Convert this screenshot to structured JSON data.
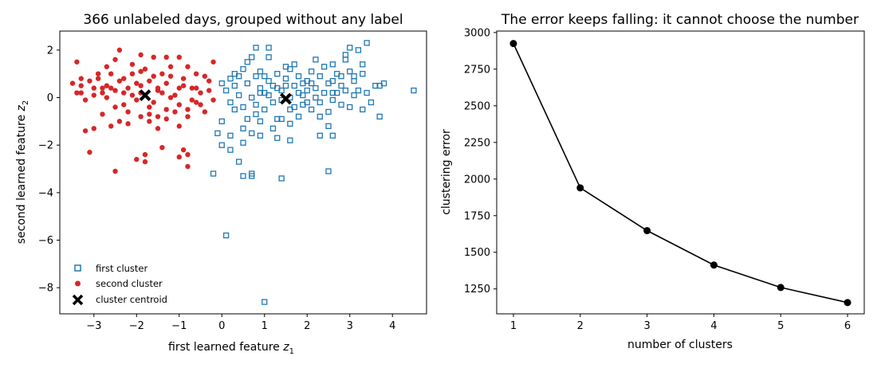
{
  "chart_data": [
    {
      "type": "scatter",
      "title": "366 unlabeled days, grouped without any label",
      "xlabel": "first learned feature z₁",
      "ylabel": "second learned feature z₂",
      "xlim": [
        -3.8,
        4.8
      ],
      "ylim": [
        -9.1,
        2.8
      ],
      "xticks": [
        "−3",
        "−2",
        "−1",
        "0",
        "1",
        "2",
        "3",
        "4"
      ],
      "yticks": [
        "2",
        "0",
        "−2",
        "−4",
        "−6",
        "−8"
      ],
      "grid": false,
      "legend_position": "lower-left",
      "series": [
        {
          "name": "first cluster",
          "marker": "open-square",
          "color": "#1f77b4",
          "points": [
            [
              0.2,
              0.8
            ],
            [
              0.3,
              1.0
            ],
            [
              0.5,
              1.2
            ],
            [
              0.6,
              0.6
            ],
            [
              0.8,
              0.9
            ],
            [
              0.9,
              0.4
            ],
            [
              1.0,
              0.2
            ],
            [
              1.1,
              0.7
            ],
            [
              1.2,
              0.5
            ],
            [
              1.3,
              1.0
            ],
            [
              1.4,
              0.3
            ],
            [
              1.5,
              0.8
            ],
            [
              1.6,
              1.2
            ],
            [
              1.7,
              0.5
            ],
            [
              1.8,
              0.9
            ],
            [
              1.9,
              0.1
            ],
            [
              2.0,
              0.7
            ],
            [
              2.1,
              1.1
            ],
            [
              2.2,
              0.4
            ],
            [
              2.3,
              0.9
            ],
            [
              2.4,
              1.3
            ],
            [
              2.5,
              0.6
            ],
            [
              2.6,
              0.2
            ],
            [
              2.7,
              1.0
            ],
            [
              2.8,
              0.5
            ],
            [
              2.9,
              1.6
            ],
            [
              3.0,
              1.1
            ],
            [
              3.1,
              0.7
            ],
            [
              3.2,
              0.3
            ],
            [
              3.3,
              1.4
            ],
            [
              0.1,
              0.3
            ],
            [
              0.2,
              -0.2
            ],
            [
              0.4,
              0.1
            ],
            [
              0.5,
              -0.4
            ],
            [
              0.7,
              0.0
            ],
            [
              0.8,
              -0.3
            ],
            [
              0.9,
              0.2
            ],
            [
              1.0,
              -0.5
            ],
            [
              1.1,
              0.1
            ],
            [
              1.2,
              -0.2
            ],
            [
              1.3,
              0.4
            ],
            [
              1.4,
              -0.1
            ],
            [
              1.6,
              0.0
            ],
            [
              1.7,
              -0.4
            ],
            [
              1.8,
              0.2
            ],
            [
              1.9,
              -0.3
            ],
            [
              2.0,
              0.3
            ],
            [
              2.1,
              -0.5
            ],
            [
              2.2,
              0.0
            ],
            [
              2.3,
              -0.2
            ],
            [
              2.5,
              -0.6
            ],
            [
              2.6,
              -0.1
            ],
            [
              2.7,
              0.2
            ],
            [
              2.8,
              -0.3
            ],
            [
              3.0,
              -0.4
            ],
            [
              3.1,
              0.1
            ],
            [
              3.3,
              -0.5
            ],
            [
              3.5,
              -0.2
            ],
            [
              3.6,
              0.5
            ],
            [
              0.0,
              0.6
            ],
            [
              0.3,
              0.5
            ],
            [
              0.6,
              1.5
            ],
            [
              0.7,
              1.7
            ],
            [
              0.8,
              2.1
            ],
            [
              1.1,
              2.1
            ],
            [
              1.1,
              1.7
            ],
            [
              1.5,
              1.3
            ],
            [
              1.7,
              1.4
            ],
            [
              2.2,
              1.6
            ],
            [
              2.6,
              1.4
            ],
            [
              2.9,
              1.8
            ],
            [
              3.0,
              2.1
            ],
            [
              3.2,
              2.0
            ],
            [
              3.4,
              2.3
            ],
            [
              3.7,
              0.5
            ],
            [
              3.8,
              0.6
            ],
            [
              0.3,
              -0.5
            ],
            [
              0.6,
              -0.9
            ],
            [
              0.9,
              -1.0
            ],
            [
              1.2,
              -1.3
            ],
            [
              1.4,
              -0.9
            ],
            [
              1.6,
              -1.1
            ],
            [
              1.8,
              -0.8
            ],
            [
              2.3,
              -0.8
            ],
            [
              2.5,
              -1.2
            ],
            [
              0.5,
              -1.3
            ],
            [
              0.7,
              -1.5
            ],
            [
              0.9,
              -1.6
            ],
            [
              1.3,
              -1.7
            ],
            [
              1.6,
              -1.8
            ],
            [
              0.2,
              -1.6
            ],
            [
              0.0,
              -1.0
            ],
            [
              -0.1,
              -1.5
            ],
            [
              0.0,
              -2.0
            ],
            [
              0.2,
              -2.2
            ],
            [
              0.5,
              -1.9
            ],
            [
              0.4,
              -2.7
            ],
            [
              2.3,
              -1.6
            ],
            [
              2.6,
              -1.6
            ],
            [
              0.5,
              -3.3
            ],
            [
              0.7,
              -3.3
            ],
            [
              0.7,
              -3.2
            ],
            [
              1.4,
              -3.4
            ],
            [
              -0.2,
              -3.2
            ],
            [
              2.5,
              -3.1
            ],
            [
              0.1,
              -5.8
            ],
            [
              1.0,
              -8.6
            ],
            [
              3.7,
              -0.8
            ],
            [
              4.5,
              0.3
            ],
            [
              3.3,
              1.0
            ],
            [
              1.9,
              0.6
            ],
            [
              2.4,
              0.2
            ],
            [
              2.8,
              0.9
            ],
            [
              1.5,
              0.5
            ],
            [
              1.0,
              0.9
            ],
            [
              0.4,
              0.9
            ],
            [
              2.0,
              -0.2
            ],
            [
              2.6,
              0.7
            ],
            [
              3.1,
              0.9
            ],
            [
              1.3,
              -0.9
            ],
            [
              0.8,
              -0.7
            ],
            [
              2.1,
              0.6
            ],
            [
              1.6,
              -0.5
            ],
            [
              2.9,
              0.3
            ],
            [
              3.4,
              0.2
            ],
            [
              0.9,
              1.1
            ]
          ]
        },
        {
          "name": "second cluster",
          "marker": "filled-circle",
          "color": "#d62728",
          "points": [
            [
              -3.5,
              0.6
            ],
            [
              -3.4,
              1.5
            ],
            [
              -3.3,
              0.2
            ],
            [
              -3.3,
              0.5
            ],
            [
              -3.2,
              -0.1
            ],
            [
              -3.1,
              0.7
            ],
            [
              -3.0,
              0.4
            ],
            [
              -2.9,
              0.8
            ],
            [
              -2.8,
              0.2
            ],
            [
              -2.7,
              0.5
            ],
            [
              -2.6,
              1.0
            ],
            [
              -2.5,
              0.3
            ],
            [
              -2.5,
              1.6
            ],
            [
              -2.4,
              2.0
            ],
            [
              -2.3,
              0.8
            ],
            [
              -2.3,
              -0.3
            ],
            [
              -2.2,
              0.4
            ],
            [
              -2.1,
              1.0
            ],
            [
              -2.0,
              -0.1
            ],
            [
              -2.0,
              0.6
            ],
            [
              -1.9,
              1.8
            ],
            [
              -1.9,
              0.2
            ],
            [
              -1.8,
              1.2
            ],
            [
              -1.7,
              -0.4
            ],
            [
              -1.7,
              0.7
            ],
            [
              -1.6,
              1.7
            ],
            [
              -1.5,
              0.3
            ],
            [
              -1.5,
              -0.8
            ],
            [
              -1.4,
              1.0
            ],
            [
              -1.3,
              0.6
            ],
            [
              -1.3,
              -0.5
            ],
            [
              -1.2,
              1.3
            ],
            [
              -1.1,
              0.1
            ],
            [
              -1.0,
              -0.3
            ],
            [
              -1.0,
              1.7
            ],
            [
              -0.9,
              0.8
            ],
            [
              -0.8,
              -0.5
            ],
            [
              -0.8,
              1.3
            ],
            [
              -0.7,
              0.4
            ],
            [
              -0.6,
              -0.2
            ],
            [
              -0.6,
              1.0
            ],
            [
              -0.5,
              0.2
            ],
            [
              -0.4,
              -0.6
            ],
            [
              -0.3,
              0.7
            ],
            [
              -0.2,
              1.5
            ],
            [
              -0.2,
              -0.1
            ],
            [
              -3.2,
              -1.4
            ],
            [
              -3.1,
              -2.3
            ],
            [
              -3.0,
              -1.3
            ],
            [
              -2.8,
              -0.7
            ],
            [
              -2.6,
              -1.2
            ],
            [
              -2.4,
              -1.0
            ],
            [
              -2.2,
              -1.1
            ],
            [
              -2.2,
              -0.6
            ],
            [
              -1.9,
              -0.8
            ],
            [
              -1.7,
              -1.0
            ],
            [
              -1.5,
              -1.3
            ],
            [
              -1.4,
              -2.1
            ],
            [
              -1.3,
              -0.9
            ],
            [
              -1.0,
              -1.2
            ],
            [
              -0.9,
              -2.2
            ],
            [
              -0.8,
              -2.4
            ],
            [
              -0.8,
              -2.9
            ],
            [
              -1.0,
              -2.5
            ],
            [
              -1.8,
              -2.4
            ],
            [
              -1.8,
              -2.7
            ],
            [
              -2.0,
              -2.6
            ],
            [
              -2.5,
              -3.1
            ],
            [
              -0.5,
              -0.3
            ],
            [
              -2.9,
              1.0
            ],
            [
              -2.7,
              0.0
            ],
            [
              -3.0,
              0.1
            ],
            [
              -2.6,
              0.4
            ],
            [
              -2.1,
              0.1
            ],
            [
              -1.6,
              0.9
            ],
            [
              -1.2,
              0.0
            ],
            [
              -0.9,
              0.5
            ],
            [
              -0.7,
              -0.1
            ],
            [
              -1.5,
              0.4
            ],
            [
              -2.4,
              0.7
            ],
            [
              -1.9,
              0.5
            ],
            [
              -1.1,
              -0.6
            ],
            [
              -0.6,
              0.4
            ],
            [
              -3.4,
              0.2
            ],
            [
              -2.8,
              0.4
            ],
            [
              -2.3,
              0.2
            ],
            [
              -1.4,
              0.2
            ],
            [
              -0.3,
              0.3
            ],
            [
              -1.6,
              -0.2
            ],
            [
              -2.1,
              1.4
            ],
            [
              -1.2,
              0.9
            ],
            [
              -0.4,
              0.9
            ],
            [
              -1.9,
              1.1
            ],
            [
              -2.7,
              1.3
            ],
            [
              -1.0,
              0.4
            ],
            [
              -1.7,
              -0.7
            ],
            [
              -0.8,
              -0.8
            ],
            [
              -2.5,
              -0.4
            ],
            [
              -3.3,
              0.8
            ],
            [
              -1.3,
              1.7
            ]
          ]
        },
        {
          "name": "cluster centroid",
          "marker": "bold-x",
          "color": "#000000",
          "points": [
            [
              -1.8,
              0.1
            ],
            [
              1.5,
              -0.05
            ]
          ]
        }
      ]
    },
    {
      "type": "line",
      "title": "The error keeps falling: it cannot choose the number",
      "xlabel": "number of clusters",
      "ylabel": "clustering error",
      "xlim": [
        0.75,
        6.25
      ],
      "ylim": [
        1080,
        3010
      ],
      "xticks": [
        "1",
        "2",
        "3",
        "4",
        "5",
        "6"
      ],
      "yticks": [
        "3000",
        "2750",
        "2500",
        "2250",
        "2000",
        "1750",
        "1500",
        "1250"
      ],
      "grid": false,
      "x": [
        1,
        2,
        3,
        4,
        5,
        6
      ],
      "series": [
        {
          "values": [
            2925,
            1940,
            1648,
            1413,
            1260,
            1157
          ],
          "color": "#000000",
          "marker": "filled-circle"
        }
      ]
    }
  ]
}
